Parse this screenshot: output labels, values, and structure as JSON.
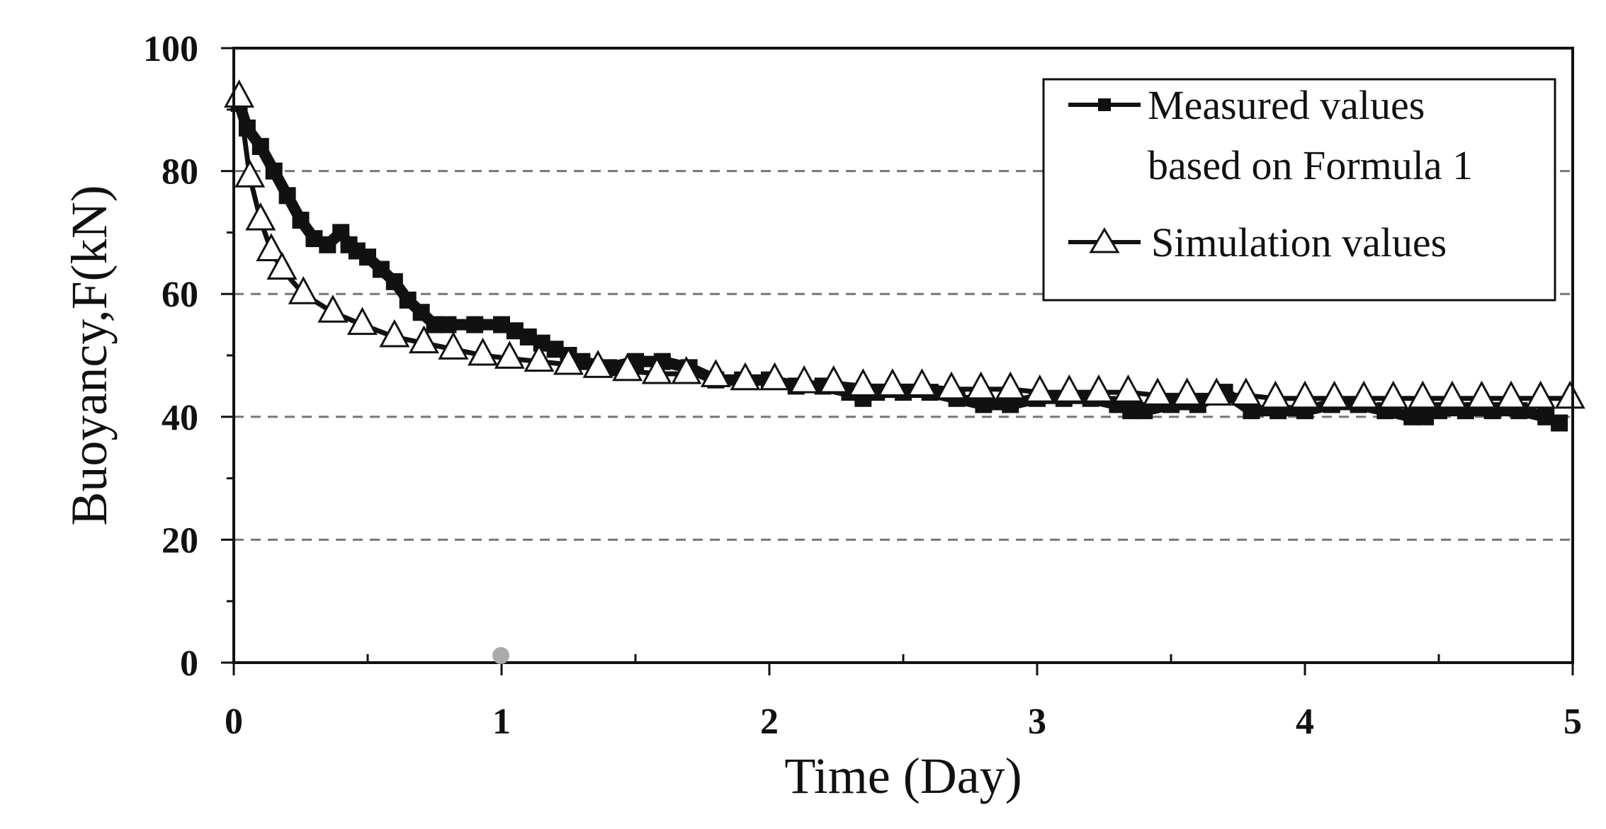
{
  "chart_data": {
    "type": "line",
    "title": "",
    "xlabel": "Time (Day)",
    "ylabel": "Buoyancy,F(kN)",
    "xlim": [
      0,
      5
    ],
    "ylim": [
      0,
      100
    ],
    "x_ticks": [
      0,
      1,
      2,
      3,
      4,
      5
    ],
    "x_tick_labels": [
      "0",
      "1",
      "2",
      "3",
      "4",
      "5"
    ],
    "y_ticks": [
      0,
      20,
      40,
      60,
      80,
      100
    ],
    "y_tick_labels": [
      "0",
      "20",
      "40",
      "60",
      "80",
      "100"
    ],
    "gridlines": {
      "y": [
        20,
        40,
        60,
        80
      ],
      "style": "dashed"
    },
    "legend_position": "top-right",
    "series": [
      {
        "name": "Measured values based on Formula 1",
        "legend_lines": [
          "Measured values",
          "based on Formula 1"
        ],
        "marker": "square",
        "x": [
          0.02,
          0.05,
          0.1,
          0.15,
          0.2,
          0.25,
          0.3,
          0.35,
          0.4,
          0.43,
          0.46,
          0.5,
          0.55,
          0.6,
          0.65,
          0.7,
          0.75,
          0.8,
          0.9,
          1.0,
          1.05,
          1.1,
          1.15,
          1.2,
          1.25,
          1.3,
          1.4,
          1.5,
          1.6,
          1.7,
          1.8,
          1.9,
          2.0,
          2.1,
          2.2,
          2.3,
          2.35,
          2.4,
          2.5,
          2.6,
          2.7,
          2.8,
          2.9,
          3.0,
          3.1,
          3.2,
          3.3,
          3.35,
          3.4,
          3.5,
          3.6,
          3.7,
          3.8,
          3.9,
          4.0,
          4.1,
          4.2,
          4.3,
          4.4,
          4.45,
          4.5,
          4.6,
          4.7,
          4.8,
          4.9,
          4.95
        ],
        "y": [
          91,
          87,
          84,
          80,
          76,
          72,
          69,
          68,
          70,
          68,
          67,
          66,
          64,
          62,
          59,
          57,
          55,
          55,
          55,
          55,
          54,
          53,
          52,
          51,
          50,
          49,
          48,
          49,
          49,
          48,
          46,
          46,
          46,
          45,
          45,
          44,
          43,
          44,
          44,
          44,
          43,
          42,
          42,
          43,
          43,
          43,
          42,
          41,
          41,
          42,
          42,
          44,
          41,
          41,
          41,
          42,
          42,
          41,
          40,
          40,
          41,
          41,
          41,
          41,
          40,
          39
        ]
      },
      {
        "name": "Simulation values",
        "legend_lines": [
          "Simulation values"
        ],
        "marker": "triangle-open",
        "x": [
          0.02,
          0.06,
          0.1,
          0.14,
          0.18,
          0.26,
          0.37,
          0.48,
          0.6,
          0.71,
          0.82,
          0.93,
          1.03,
          1.14,
          1.25,
          1.36,
          1.47,
          1.58,
          1.69,
          1.8,
          1.91,
          2.02,
          2.13,
          2.24,
          2.35,
          2.46,
          2.57,
          2.68,
          2.79,
          2.9,
          3.01,
          3.12,
          3.23,
          3.34,
          3.45,
          3.56,
          3.67,
          3.78,
          3.89,
          4.0,
          4.11,
          4.22,
          4.33,
          4.44,
          4.55,
          4.66,
          4.77,
          4.88,
          4.99
        ],
        "y": [
          92,
          79,
          72,
          67,
          64,
          60,
          57,
          55,
          53,
          52,
          51,
          50,
          49.5,
          49,
          48.5,
          48,
          47.5,
          47,
          47,
          46.5,
          46,
          46,
          45.5,
          45.5,
          45,
          45,
          45,
          44.5,
          44.5,
          44.5,
          44,
          44,
          44,
          44,
          43.5,
          43.5,
          43.5,
          43.5,
          43,
          43,
          43,
          43,
          43,
          43,
          43,
          43,
          43,
          43,
          43
        ]
      }
    ]
  }
}
